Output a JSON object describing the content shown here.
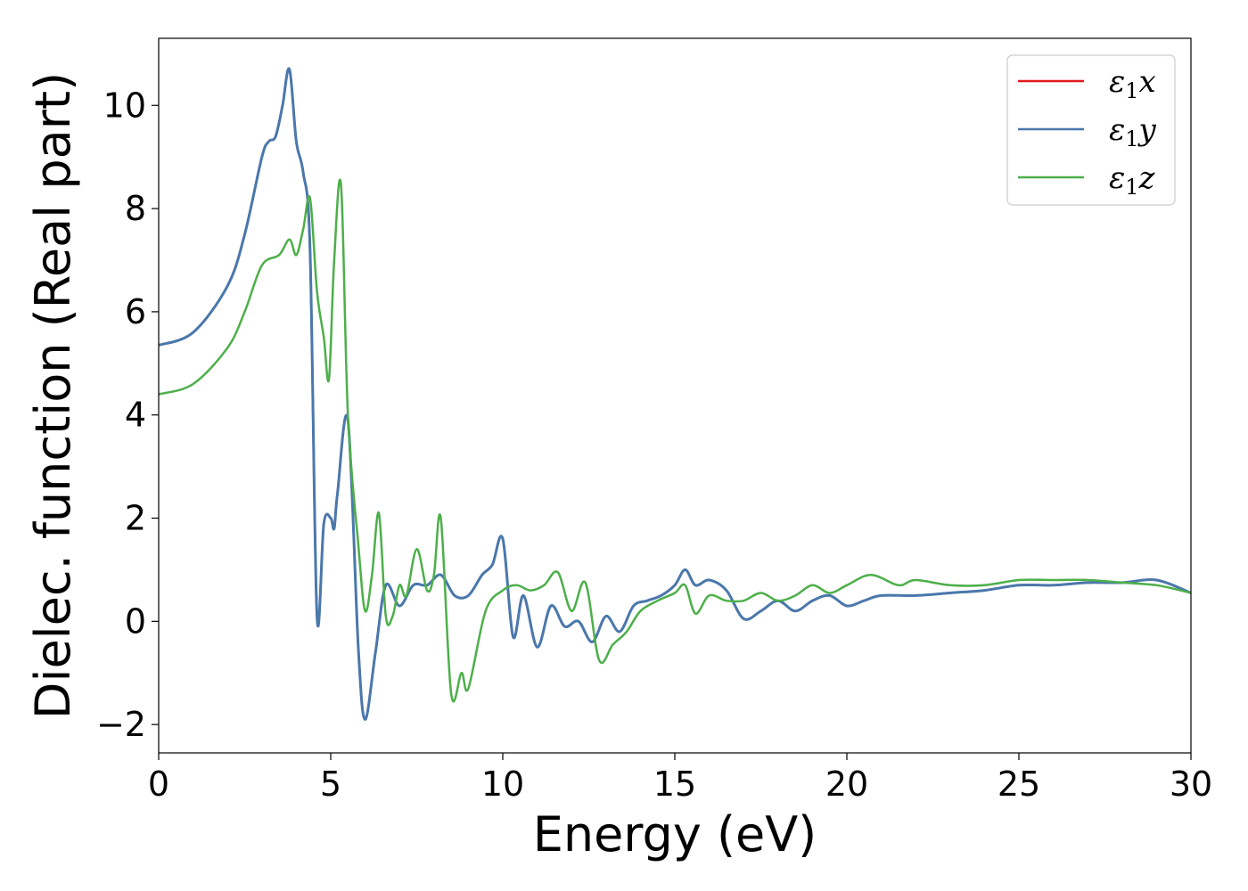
{
  "chart_data": {
    "type": "line",
    "xlabel": "Energy (eV)",
    "ylabel": "Dielec. function (Real part)",
    "xlim": [
      0,
      30
    ],
    "ylim": [
      -2.55,
      11.3
    ],
    "xticks": [
      0,
      5,
      10,
      15,
      20,
      25,
      30
    ],
    "xtick_labels": [
      "0",
      "5",
      "10",
      "15",
      "20",
      "25",
      "30"
    ],
    "yticks": [
      -2,
      0,
      2,
      4,
      6,
      8,
      10
    ],
    "ytick_labels": [
      "−2",
      "0",
      "2",
      "4",
      "6",
      "8",
      "10"
    ],
    "grid": false,
    "legend_position": "top-right",
    "series": [
      {
        "name_symbol": "ε",
        "name_sub": "1",
        "name_var": "x",
        "color": "#e41a1c",
        "x": [
          0,
          1,
          2,
          2.5,
          3,
          3.2,
          3.4,
          3.6,
          3.8,
          4.0,
          4.2,
          4.4,
          4.6,
          4.8,
          5.0,
          5.1,
          5.2,
          5.5,
          5.8,
          6.0,
          6.3,
          6.6,
          7.0,
          7.4,
          7.8,
          8.2,
          8.6,
          9.0,
          9.4,
          9.7,
          10.0,
          10.3,
          10.6,
          11.0,
          11.4,
          11.8,
          12.2,
          12.6,
          13.0,
          13.4,
          13.8,
          14.2,
          14.6,
          15.0,
          15.3,
          15.6,
          16.0,
          16.5,
          17.0,
          17.5,
          18.0,
          18.5,
          19.0,
          19.5,
          20.0,
          20.5,
          21.0,
          22.0,
          23.0,
          24.0,
          25.0,
          26.0,
          27.0,
          28.0,
          29.0,
          30.0
        ],
        "y": [
          5.35,
          5.6,
          6.5,
          7.5,
          9.0,
          9.3,
          9.4,
          10.0,
          10.7,
          9.3,
          8.7,
          7.2,
          0.1,
          1.9,
          2.0,
          1.8,
          2.5,
          3.9,
          -0.5,
          -1.9,
          -0.6,
          0.7,
          0.3,
          0.7,
          0.7,
          0.9,
          0.5,
          0.5,
          0.9,
          1.1,
          1.6,
          -0.3,
          0.5,
          -0.5,
          0.3,
          -0.1,
          0.0,
          -0.4,
          0.1,
          -0.2,
          0.3,
          0.4,
          0.5,
          0.7,
          1.0,
          0.7,
          0.8,
          0.6,
          0.05,
          0.2,
          0.4,
          0.2,
          0.4,
          0.5,
          0.3,
          0.4,
          0.5,
          0.5,
          0.55,
          0.6,
          0.7,
          0.7,
          0.75,
          0.75,
          0.8,
          0.55
        ]
      },
      {
        "name_symbol": "ε",
        "name_sub": "1",
        "name_var": "y",
        "color": "#4a78ac",
        "x": [
          0,
          1,
          2,
          2.5,
          3,
          3.2,
          3.4,
          3.6,
          3.8,
          4.0,
          4.2,
          4.4,
          4.6,
          4.8,
          5.0,
          5.1,
          5.2,
          5.5,
          5.8,
          6.0,
          6.3,
          6.6,
          7.0,
          7.4,
          7.8,
          8.2,
          8.6,
          9.0,
          9.4,
          9.7,
          10.0,
          10.3,
          10.6,
          11.0,
          11.4,
          11.8,
          12.2,
          12.6,
          13.0,
          13.4,
          13.8,
          14.2,
          14.6,
          15.0,
          15.3,
          15.6,
          16.0,
          16.5,
          17.0,
          17.5,
          18.0,
          18.5,
          19.0,
          19.5,
          20.0,
          20.5,
          21.0,
          22.0,
          23.0,
          24.0,
          25.0,
          26.0,
          27.0,
          28.0,
          29.0,
          30.0
        ],
        "y": [
          5.35,
          5.6,
          6.5,
          7.5,
          9.0,
          9.3,
          9.4,
          10.0,
          10.7,
          9.3,
          8.7,
          7.2,
          0.1,
          1.9,
          2.0,
          1.8,
          2.5,
          3.9,
          -0.5,
          -1.9,
          -0.6,
          0.7,
          0.3,
          0.7,
          0.7,
          0.9,
          0.5,
          0.5,
          0.9,
          1.1,
          1.6,
          -0.3,
          0.5,
          -0.5,
          0.3,
          -0.1,
          0.0,
          -0.4,
          0.1,
          -0.2,
          0.3,
          0.4,
          0.5,
          0.7,
          1.0,
          0.7,
          0.8,
          0.6,
          0.05,
          0.2,
          0.4,
          0.2,
          0.4,
          0.5,
          0.3,
          0.4,
          0.5,
          0.5,
          0.55,
          0.6,
          0.7,
          0.7,
          0.75,
          0.75,
          0.8,
          0.55
        ]
      },
      {
        "name_symbol": "ε",
        "name_sub": "1",
        "name_var": "z",
        "color": "#4daf4a",
        "x": [
          0,
          1,
          2,
          2.5,
          3,
          3.5,
          3.8,
          4.0,
          4.2,
          4.4,
          4.6,
          4.8,
          4.95,
          5.1,
          5.3,
          5.5,
          5.8,
          6.0,
          6.2,
          6.4,
          6.6,
          6.8,
          7.0,
          7.2,
          7.5,
          7.8,
          8.0,
          8.2,
          8.5,
          8.8,
          9.0,
          9.5,
          10.0,
          10.4,
          10.8,
          11.2,
          11.6,
          12.0,
          12.4,
          12.8,
          13.2,
          13.6,
          14.0,
          14.5,
          15.0,
          15.3,
          15.6,
          16.0,
          16.5,
          17.0,
          17.5,
          18.0,
          18.5,
          19.0,
          19.5,
          20.0,
          20.7,
          21.5,
          22.0,
          23.0,
          24.0,
          25.0,
          26.0,
          27.0,
          28.0,
          29.0,
          30.0
        ],
        "y": [
          4.4,
          4.6,
          5.3,
          6.0,
          6.9,
          7.1,
          7.4,
          7.1,
          7.6,
          8.2,
          6.4,
          5.5,
          4.7,
          7.0,
          8.45,
          4.0,
          1.5,
          0.2,
          0.9,
          2.1,
          0.1,
          0.1,
          0.7,
          0.5,
          1.4,
          0.6,
          0.9,
          2.0,
          -1.4,
          -1.0,
          -1.3,
          0.2,
          0.6,
          0.7,
          0.6,
          0.7,
          0.95,
          0.2,
          0.75,
          -0.75,
          -0.45,
          -0.2,
          0.2,
          0.4,
          0.55,
          0.7,
          0.15,
          0.5,
          0.4,
          0.4,
          0.55,
          0.4,
          0.5,
          0.7,
          0.55,
          0.7,
          0.9,
          0.7,
          0.8,
          0.7,
          0.7,
          0.8,
          0.8,
          0.8,
          0.75,
          0.7,
          0.55
        ]
      }
    ]
  }
}
